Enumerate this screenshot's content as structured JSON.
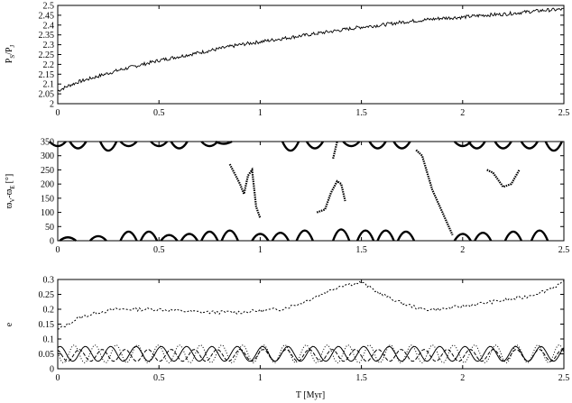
{
  "figure": {
    "xlabel": "T [Myr]"
  },
  "chart_data": [
    {
      "type": "line",
      "panel": "top",
      "ylabel": "P_S/P_J",
      "ylabel_main": "P",
      "ylabel_sub1": "S",
      "ylabel_slash": "/P",
      "ylabel_sub2": "J",
      "xlim": [
        0,
        2.5
      ],
      "ylim": [
        2.0,
        2.5
      ],
      "xticks": [
        "0",
        "0.5",
        "1",
        "1.5",
        "2",
        "2.5"
      ],
      "yticks": [
        "2",
        "2.05",
        "2.1",
        "2.15",
        "2.2",
        "2.25",
        "2.3",
        "2.35",
        "2.4",
        "2.45",
        "2.5"
      ],
      "series": [
        {
          "style": "noisy",
          "color": "#000000",
          "x": [
            0,
            0.05,
            0.1,
            0.2,
            0.3,
            0.4,
            0.5,
            0.6,
            0.7,
            0.8,
            0.9,
            1.0,
            1.1,
            1.2,
            1.3,
            1.4,
            1.5,
            1.6,
            1.7,
            1.8,
            1.9,
            2.0,
            2.1,
            2.2,
            2.3,
            2.4,
            2.5
          ],
          "y": [
            2.065,
            2.09,
            2.11,
            2.14,
            2.17,
            2.195,
            2.22,
            2.24,
            2.26,
            2.28,
            2.3,
            2.315,
            2.33,
            2.345,
            2.36,
            2.375,
            2.39,
            2.4,
            2.415,
            2.425,
            2.435,
            2.44,
            2.45,
            2.455,
            2.465,
            2.475,
            2.48
          ]
        }
      ]
    },
    {
      "type": "scatter",
      "panel": "middle",
      "ylabel": "ϖV-ϖE [°]",
      "ylabel_main": "ϖ",
      "ylabel_sub1": "V",
      "ylabel_slash": "-ϖ",
      "ylabel_sub2": "E",
      "ylabel_unit": "[°]",
      "xlim": [
        0,
        2.5
      ],
      "ylim": [
        0,
        350
      ],
      "xticks": [
        "0",
        "0.5",
        "1",
        "1.5",
        "2",
        "2.5"
      ],
      "yticks": [
        "0",
        "50",
        "100",
        "150",
        "200",
        "250",
        "300",
        "350"
      ],
      "series": [
        {
          "style": "arc-top",
          "x": [
            0.0,
            0.1,
            0.25,
            0.35,
            0.5,
            0.6,
            0.75,
            0.82,
            1.15,
            1.27,
            1.45,
            1.58,
            1.7,
            2.0,
            2.07,
            2.2,
            2.33,
            2.45
          ],
          "y": [
            330,
            320,
            310,
            330,
            330,
            320,
            330,
            340,
            310,
            320,
            330,
            320,
            320,
            330,
            320,
            320,
            320,
            310
          ]
        },
        {
          "style": "arc-bottom",
          "x": [
            0.05,
            0.2,
            0.35,
            0.45,
            0.55,
            0.65,
            0.75,
            0.85,
            1.0,
            1.1,
            1.22,
            1.4,
            1.52,
            1.62,
            1.72,
            2.0,
            2.1,
            2.25,
            2.38
          ],
          "y": [
            15,
            20,
            40,
            40,
            25,
            30,
            40,
            45,
            30,
            35,
            45,
            50,
            45,
            45,
            40,
            30,
            35,
            40,
            45
          ]
        },
        {
          "style": "swoop",
          "x": [
            0.85,
            0.9,
            0.92,
            0.94,
            0.96,
            0.98,
            1.0
          ],
          "y": [
            270,
            200,
            165,
            230,
            250,
            120,
            80
          ]
        },
        {
          "style": "swoop",
          "x": [
            1.28,
            1.32,
            1.35,
            1.38,
            1.4,
            1.42
          ],
          "y": [
            100,
            110,
            170,
            210,
            200,
            140
          ]
        },
        {
          "style": "swoop",
          "x": [
            1.36,
            1.38
          ],
          "y": [
            290,
            350
          ]
        },
        {
          "style": "swoop",
          "x": [
            1.77,
            1.8,
            1.85,
            1.9,
            1.95
          ],
          "y": [
            320,
            300,
            180,
            100,
            20
          ]
        },
        {
          "style": "swoop",
          "x": [
            2.12,
            2.15,
            2.2,
            2.24,
            2.28
          ],
          "y": [
            250,
            240,
            190,
            200,
            250
          ]
        }
      ]
    },
    {
      "type": "line",
      "panel": "bottom",
      "ylabel": "e",
      "xlim": [
        0,
        2.5
      ],
      "ylim": [
        0,
        0.3
      ],
      "xticks": [
        "0",
        "0.5",
        "1",
        "1.5",
        "2",
        "2.5"
      ],
      "yticks": [
        "0",
        "0.05",
        "0.1",
        "0.15",
        "0.2",
        "0.25",
        "0.3"
      ],
      "series": [
        {
          "dash": "2,2",
          "x": [
            0,
            0.1,
            0.2,
            0.3,
            0.5,
            0.7,
            0.9,
            1.1,
            1.2,
            1.3,
            1.4,
            1.5,
            1.6,
            1.7,
            1.8,
            1.9,
            2.0,
            2.1,
            2.2,
            2.3,
            2.4,
            2.5
          ],
          "y": [
            0.13,
            0.17,
            0.19,
            0.2,
            0.2,
            0.19,
            0.19,
            0.2,
            0.22,
            0.25,
            0.28,
            0.29,
            0.25,
            0.22,
            0.2,
            0.2,
            0.21,
            0.22,
            0.23,
            0.24,
            0.26,
            0.29
          ]
        },
        {
          "dash": "none",
          "amp": 0.025,
          "base": 0.05,
          "freq": 10,
          "x": [
            0,
            2.5
          ]
        },
        {
          "dash": "4,2",
          "amp": 0.02,
          "base": 0.045,
          "freq": 11,
          "x": [
            0,
            2.5
          ]
        },
        {
          "dash": "1,2",
          "amp": 0.03,
          "base": 0.05,
          "freq": 12,
          "x": [
            0,
            2.5
          ]
        }
      ]
    }
  ]
}
